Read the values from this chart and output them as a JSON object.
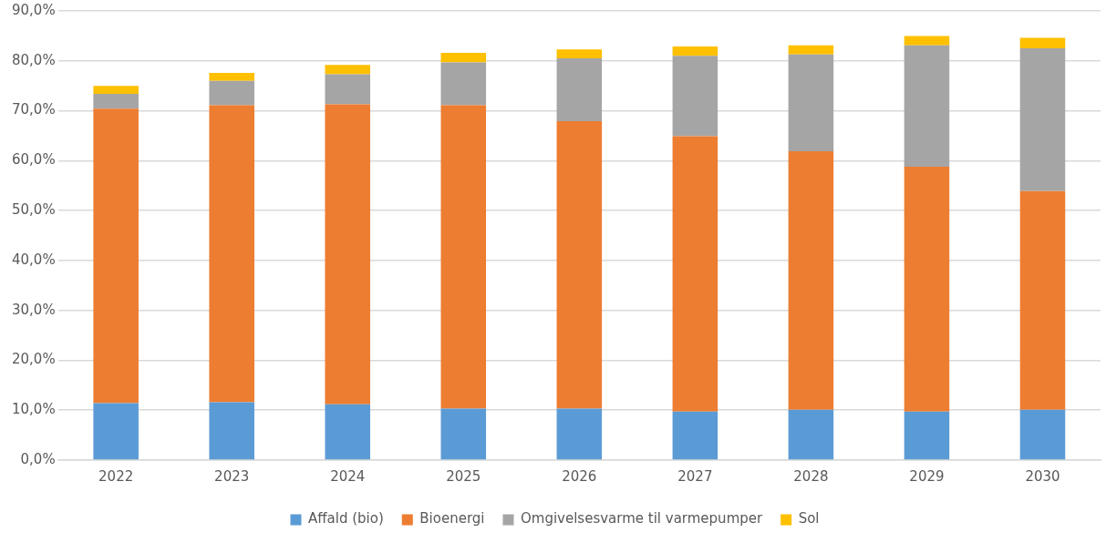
{
  "chart_data": {
    "type": "bar",
    "stacked": true,
    "categories": [
      "2022",
      "2023",
      "2024",
      "2025",
      "2026",
      "2027",
      "2028",
      "2029",
      "2030"
    ],
    "series": [
      {
        "name": "Affald (bio)",
        "color": "#5b9bd5",
        "values": [
          11.4,
          11.6,
          11.2,
          10.3,
          10.3,
          9.7,
          10.1,
          9.7,
          10.1
        ]
      },
      {
        "name": "Bioenergi",
        "color": "#ed7d31",
        "values": [
          59.0,
          59.5,
          60.1,
          60.8,
          57.6,
          55.2,
          51.8,
          49.1,
          43.8
        ]
      },
      {
        "name": "Omgivelsesvarme til varmepumper",
        "color": "#a5a5a5",
        "values": [
          3.0,
          4.9,
          6.0,
          8.6,
          12.6,
          16.1,
          19.4,
          24.3,
          28.6
        ]
      },
      {
        "name": "Sol",
        "color": "#ffc000",
        "values": [
          1.6,
          1.6,
          1.9,
          1.9,
          1.8,
          1.9,
          1.8,
          1.9,
          2.1
        ]
      }
    ],
    "ylim": [
      0,
      90
    ],
    "yticks": [
      {
        "value": 0,
        "label": "0,0%"
      },
      {
        "value": 10,
        "label": "10,0%"
      },
      {
        "value": 20,
        "label": "20,0%"
      },
      {
        "value": 30,
        "label": "30,0%"
      },
      {
        "value": 40,
        "label": "40,0%"
      },
      {
        "value": 50,
        "label": "50,0%"
      },
      {
        "value": 60,
        "label": "60,0%"
      },
      {
        "value": 70,
        "label": "70,0%"
      },
      {
        "value": 80,
        "label": "80,0%"
      },
      {
        "value": 90,
        "label": "90,0%"
      }
    ],
    "grid": "y",
    "legend": "bottom"
  }
}
